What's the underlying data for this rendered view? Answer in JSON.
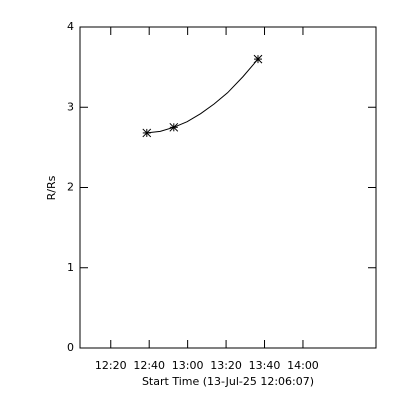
{
  "chart_data": {
    "type": "scatter",
    "x_label": "Start Time (13-Jul-25 12:06:07)",
    "y_label": "R/Rs",
    "x": [
      758.75,
      772.8,
      816.6
    ],
    "values": [
      2.68,
      2.75,
      3.6
    ],
    "fit": {
      "x": [
        758.75,
        765.75,
        772.8,
        779.75,
        786.75,
        793.75,
        800.75,
        808.75,
        816.6
      ],
      "values": [
        2.68,
        2.7,
        2.75,
        2.82,
        2.92,
        3.04,
        3.18,
        3.38,
        3.6
      ]
    },
    "color": "#000000",
    "xlim": [
      724,
      878
    ],
    "xticks": [
      {
        "value": 740,
        "label": "12:20"
      },
      {
        "value": 760,
        "label": "12:40"
      },
      {
        "value": 780,
        "label": "13:00"
      },
      {
        "value": 800,
        "label": "13:20"
      },
      {
        "value": 820,
        "label": "13:40"
      },
      {
        "value": 840,
        "label": "14:00"
      }
    ],
    "ylim": [
      0,
      4
    ],
    "yticks": [
      0,
      1,
      2,
      3,
      4
    ]
  }
}
